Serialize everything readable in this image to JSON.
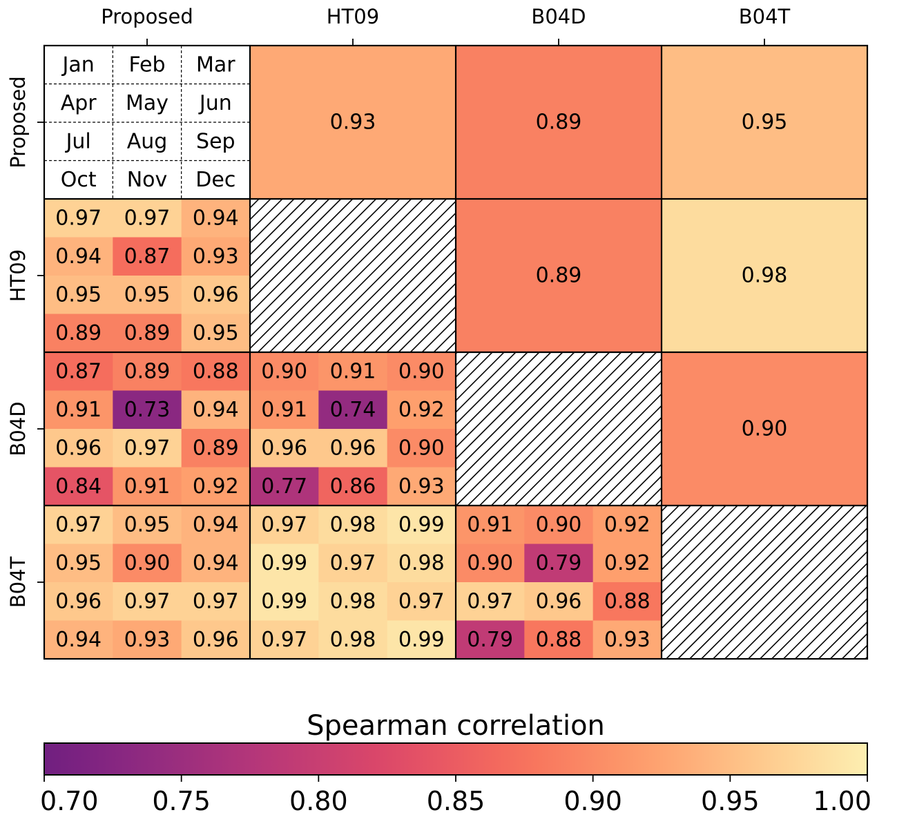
{
  "chart_data": {
    "type": "heatmap",
    "methods": [
      "Proposed",
      "HT09",
      "B04D",
      "B04T"
    ],
    "month_grid": [
      [
        "Jan",
        "Feb",
        "Mar"
      ],
      [
        "Apr",
        "May",
        "Jun"
      ],
      [
        "Jul",
        "Aug",
        "Sep"
      ],
      [
        "Oct",
        "Nov",
        "Dec"
      ]
    ],
    "upper_triangle": [
      {
        "row": "Proposed",
        "col": "HT09",
        "value": 0.93
      },
      {
        "row": "Proposed",
        "col": "B04D",
        "value": 0.89
      },
      {
        "row": "Proposed",
        "col": "B04T",
        "value": 0.95
      },
      {
        "row": "HT09",
        "col": "B04D",
        "value": 0.89
      },
      {
        "row": "HT09",
        "col": "B04T",
        "value": 0.98
      },
      {
        "row": "B04D",
        "col": "B04T",
        "value": 0.9
      }
    ],
    "lower_triangle": [
      {
        "row": "HT09",
        "col": "Proposed",
        "values": [
          [
            0.97,
            0.97,
            0.94
          ],
          [
            0.94,
            0.87,
            0.93
          ],
          [
            0.95,
            0.95,
            0.96
          ],
          [
            0.89,
            0.89,
            0.95
          ]
        ]
      },
      {
        "row": "B04D",
        "col": "Proposed",
        "values": [
          [
            0.87,
            0.89,
            0.88
          ],
          [
            0.91,
            0.73,
            0.94
          ],
          [
            0.96,
            0.97,
            0.89
          ],
          [
            0.84,
            0.91,
            0.92
          ]
        ]
      },
      {
        "row": "B04D",
        "col": "HT09",
        "values": [
          [
            0.9,
            0.91,
            0.9
          ],
          [
            0.91,
            0.74,
            0.92
          ],
          [
            0.96,
            0.96,
            0.9
          ],
          [
            0.77,
            0.86,
            0.93
          ]
        ]
      },
      {
        "row": "B04T",
        "col": "Proposed",
        "values": [
          [
            0.97,
            0.95,
            0.94
          ],
          [
            0.95,
            0.9,
            0.94
          ],
          [
            0.96,
            0.97,
            0.97
          ],
          [
            0.94,
            0.93,
            0.96
          ]
        ]
      },
      {
        "row": "B04T",
        "col": "HT09",
        "values": [
          [
            0.97,
            0.98,
            0.99
          ],
          [
            0.99,
            0.97,
            0.98
          ],
          [
            0.99,
            0.98,
            0.97
          ],
          [
            0.97,
            0.98,
            0.99
          ]
        ]
      },
      {
        "row": "B04T",
        "col": "B04D",
        "values": [
          [
            0.91,
            0.9,
            0.92
          ],
          [
            0.9,
            0.79,
            0.92
          ],
          [
            0.97,
            0.96,
            0.88
          ],
          [
            0.79,
            0.88,
            0.93
          ]
        ]
      }
    ],
    "diagonal": "hatched",
    "colorbar": {
      "label": "Spearman correlation",
      "range": [
        0.7,
        1.0
      ],
      "ticks": [
        "0.70",
        "0.75",
        "0.80",
        "0.85",
        "0.90",
        "0.95",
        "1.00"
      ],
      "colormap": "magma"
    }
  }
}
